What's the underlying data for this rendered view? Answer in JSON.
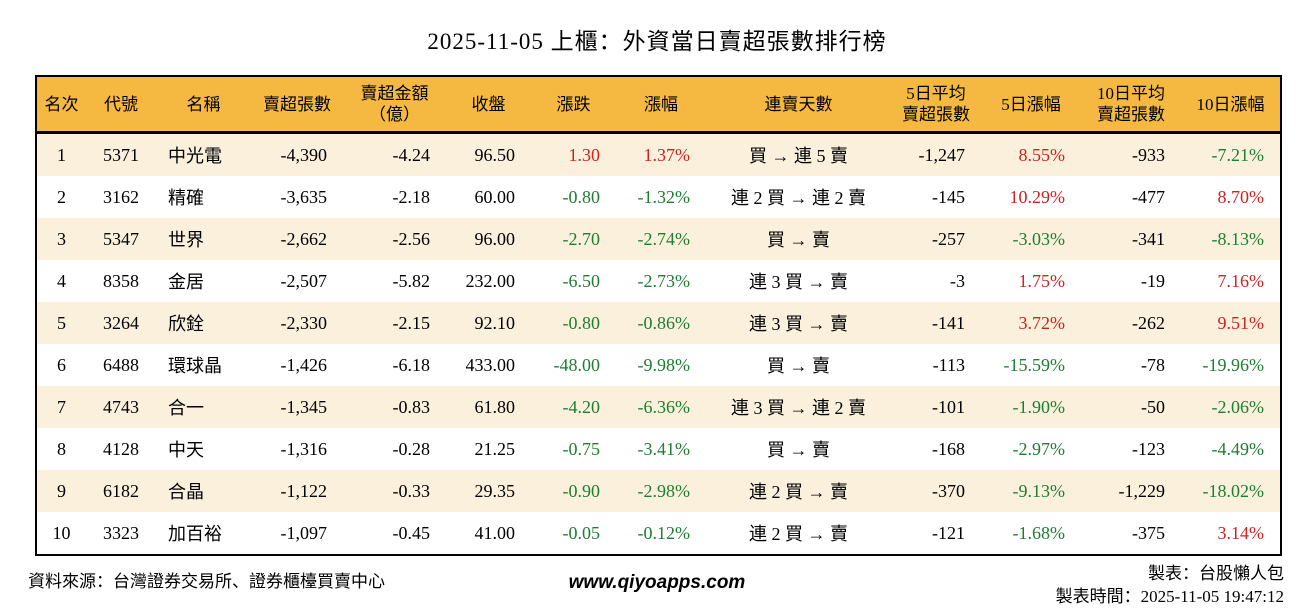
{
  "title": "2025-11-05 上櫃：外資當日賣超張數排行榜",
  "colors": {
    "header_bg": "#F5B942",
    "row_alt_bg": "#FAF0DC",
    "up_red": "#CC2222",
    "down_green": "#1E7D32",
    "border": "#000000"
  },
  "chart_data": {
    "type": "table",
    "columns": [
      {
        "key": "rank",
        "lines": [
          "名次"
        ],
        "align": "c",
        "width": 50
      },
      {
        "key": "code",
        "lines": [
          "代號"
        ],
        "align": "c",
        "width": 70
      },
      {
        "key": "name",
        "lines": [
          "名稱"
        ],
        "align": "l",
        "width": 95
      },
      {
        "key": "sell_volume",
        "lines": [
          "賣超張數"
        ],
        "align": "r",
        "width": 92
      },
      {
        "key": "sell_amount",
        "lines": [
          "賣超金額",
          "（億）"
        ],
        "align": "r",
        "width": 103
      },
      {
        "key": "close",
        "lines": [
          "收盤"
        ],
        "align": "r",
        "width": 85
      },
      {
        "key": "change",
        "lines": [
          "漲跌"
        ],
        "align": "r",
        "width": 85
      },
      {
        "key": "change_pct",
        "lines": [
          "漲幅"
        ],
        "align": "r",
        "width": 90
      },
      {
        "key": "streak",
        "lines": [
          "連賣天數"
        ],
        "align": "c",
        "width": 185
      },
      {
        "key": "avg5",
        "lines": [
          "5日平均",
          "賣超張數"
        ],
        "align": "r",
        "width": 90
      },
      {
        "key": "pct5",
        "lines": [
          "5日漲幅"
        ],
        "align": "r",
        "width": 100
      },
      {
        "key": "avg10",
        "lines": [
          "10日平均",
          "賣超張數"
        ],
        "align": "r",
        "width": 100
      },
      {
        "key": "pct10",
        "lines": [
          "10日漲幅"
        ],
        "align": "r",
        "width": 100
      }
    ],
    "rows": [
      {
        "rank": "1",
        "code": "5371",
        "name": "中光電",
        "sell_volume": "-4,390",
        "sell_amount": "-4.24",
        "close": "96.50",
        "change": {
          "v": "1.30",
          "c": "red"
        },
        "change_pct": {
          "v": "1.37%",
          "c": "red"
        },
        "streak": "買 → 連 5 賣",
        "avg5": "-1,247",
        "pct5": {
          "v": "8.55%",
          "c": "red"
        },
        "avg10": "-933",
        "pct10": {
          "v": "-7.21%",
          "c": "green"
        }
      },
      {
        "rank": "2",
        "code": "3162",
        "name": "精確",
        "sell_volume": "-3,635",
        "sell_amount": "-2.18",
        "close": "60.00",
        "change": {
          "v": "-0.80",
          "c": "green"
        },
        "change_pct": {
          "v": "-1.32%",
          "c": "green"
        },
        "streak": "連 2 買 → 連 2 賣",
        "avg5": "-145",
        "pct5": {
          "v": "10.29%",
          "c": "red"
        },
        "avg10": "-477",
        "pct10": {
          "v": "8.70%",
          "c": "red"
        }
      },
      {
        "rank": "3",
        "code": "5347",
        "name": "世界",
        "sell_volume": "-2,662",
        "sell_amount": "-2.56",
        "close": "96.00",
        "change": {
          "v": "-2.70",
          "c": "green"
        },
        "change_pct": {
          "v": "-2.74%",
          "c": "green"
        },
        "streak": "買 → 賣",
        "avg5": "-257",
        "pct5": {
          "v": "-3.03%",
          "c": "green"
        },
        "avg10": "-341",
        "pct10": {
          "v": "-8.13%",
          "c": "green"
        }
      },
      {
        "rank": "4",
        "code": "8358",
        "name": "金居",
        "sell_volume": "-2,507",
        "sell_amount": "-5.82",
        "close": "232.00",
        "change": {
          "v": "-6.50",
          "c": "green"
        },
        "change_pct": {
          "v": "-2.73%",
          "c": "green"
        },
        "streak": "連 3 買 → 賣",
        "avg5": "-3",
        "pct5": {
          "v": "1.75%",
          "c": "red"
        },
        "avg10": "-19",
        "pct10": {
          "v": "7.16%",
          "c": "red"
        }
      },
      {
        "rank": "5",
        "code": "3264",
        "name": "欣銓",
        "sell_volume": "-2,330",
        "sell_amount": "-2.15",
        "close": "92.10",
        "change": {
          "v": "-0.80",
          "c": "green"
        },
        "change_pct": {
          "v": "-0.86%",
          "c": "green"
        },
        "streak": "連 3 買 → 賣",
        "avg5": "-141",
        "pct5": {
          "v": "3.72%",
          "c": "red"
        },
        "avg10": "-262",
        "pct10": {
          "v": "9.51%",
          "c": "red"
        }
      },
      {
        "rank": "6",
        "code": "6488",
        "name": "環球晶",
        "sell_volume": "-1,426",
        "sell_amount": "-6.18",
        "close": "433.00",
        "change": {
          "v": "-48.00",
          "c": "green"
        },
        "change_pct": {
          "v": "-9.98%",
          "c": "green"
        },
        "streak": "買 → 賣",
        "avg5": "-113",
        "pct5": {
          "v": "-15.59%",
          "c": "green"
        },
        "avg10": "-78",
        "pct10": {
          "v": "-19.96%",
          "c": "green"
        }
      },
      {
        "rank": "7",
        "code": "4743",
        "name": "合一",
        "sell_volume": "-1,345",
        "sell_amount": "-0.83",
        "close": "61.80",
        "change": {
          "v": "-4.20",
          "c": "green"
        },
        "change_pct": {
          "v": "-6.36%",
          "c": "green"
        },
        "streak": "連 3 買 → 連 2 賣",
        "avg5": "-101",
        "pct5": {
          "v": "-1.90%",
          "c": "green"
        },
        "avg10": "-50",
        "pct10": {
          "v": "-2.06%",
          "c": "green"
        }
      },
      {
        "rank": "8",
        "code": "4128",
        "name": "中天",
        "sell_volume": "-1,316",
        "sell_amount": "-0.28",
        "close": "21.25",
        "change": {
          "v": "-0.75",
          "c": "green"
        },
        "change_pct": {
          "v": "-3.41%",
          "c": "green"
        },
        "streak": "買 → 賣",
        "avg5": "-168",
        "pct5": {
          "v": "-2.97%",
          "c": "green"
        },
        "avg10": "-123",
        "pct10": {
          "v": "-4.49%",
          "c": "green"
        }
      },
      {
        "rank": "9",
        "code": "6182",
        "name": "合晶",
        "sell_volume": "-1,122",
        "sell_amount": "-0.33",
        "close": "29.35",
        "change": {
          "v": "-0.90",
          "c": "green"
        },
        "change_pct": {
          "v": "-2.98%",
          "c": "green"
        },
        "streak": "連 2 買 → 賣",
        "avg5": "-370",
        "pct5": {
          "v": "-9.13%",
          "c": "green"
        },
        "avg10": "-1,229",
        "pct10": {
          "v": "-18.02%",
          "c": "green"
        }
      },
      {
        "rank": "10",
        "code": "3323",
        "name": "加百裕",
        "sell_volume": "-1,097",
        "sell_amount": "-0.45",
        "close": "41.00",
        "change": {
          "v": "-0.05",
          "c": "green"
        },
        "change_pct": {
          "v": "-0.12%",
          "c": "green"
        },
        "streak": "連 2 買 → 賣",
        "avg5": "-121",
        "pct5": {
          "v": "-1.68%",
          "c": "green"
        },
        "avg10": "-375",
        "pct10": {
          "v": "3.14%",
          "c": "red"
        }
      }
    ]
  },
  "footer": {
    "source": "資料來源：台灣證券交易所、證券櫃檯買賣中心",
    "website": "www.qiyoapps.com",
    "maker": "製表：台股懶人包",
    "made_time": "製表時間：2025-11-05 19:47:12"
  }
}
